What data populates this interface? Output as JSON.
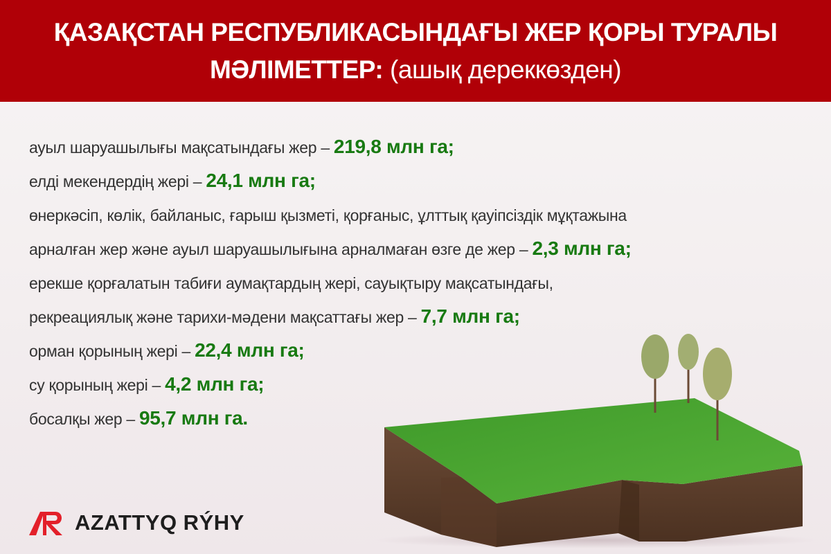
{
  "header": {
    "title_line1": "ҚАЗАҚСТАН РЕСПУБЛИКАСЫНДАҒЫ ЖЕР ҚОРЫ ТУРАЛЫ",
    "title_line2_bold": "МӘЛІМЕТТЕР:",
    "title_line2_note": "(ашық дереккөзден)",
    "background_color": "#b00007"
  },
  "items": [
    {
      "text": "ауыл шаруашылығы мақсатындағы жер – ",
      "value": "219,8 млн га;"
    },
    {
      "text": "елді мекендердің  жері – ",
      "value": "24,1 млн га;"
    },
    {
      "text": "өнеркәсіп, көлік, байланыс, ғарыш қызметі, қорғаныс, ұлттық қауіпсіздік мұқтажына",
      "value": ""
    },
    {
      "text": "арналған жер және ауыл шаруашылығына арналмаған өзге де жер – ",
      "value": "2,3 млн га;"
    },
    {
      "text": "ерекше қорғалатын табиғи аумақтардың жері, сауықтыру мақсатындағы,",
      "value": ""
    },
    {
      "text": "рекреациялық және тарихи-мәдени мақсаттағы жер – ",
      "value": "7,7 млн га;"
    },
    {
      "text": "орман қорының жері – ",
      "value": "22,4 млн га;"
    },
    {
      "text": "су қорының жері – ",
      "value": "4,2 млн га;"
    },
    {
      "text": "босалқы жер – ",
      "value": "95,7 млн га."
    }
  ],
  "value_color": "#187a12",
  "logo": {
    "text": "AZATTYQ RÝHY",
    "accent_color": "#e3202a"
  }
}
